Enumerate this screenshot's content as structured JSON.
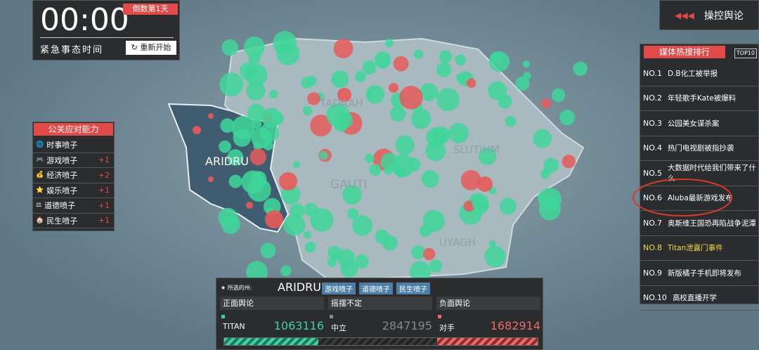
{
  "timer": {
    "time": "00:00",
    "day_tag": "倒数第1天",
    "label": "紧急事态时间",
    "restart": "重新开始"
  },
  "control_button": "操控舆论",
  "hot_search": {
    "title": "媒体热搜排行",
    "badge": "TOP10",
    "items": [
      {
        "rank": "NO.1",
        "text": "D.B化工被举报"
      },
      {
        "rank": "NO.2",
        "text": "年轻歌手Kate被爆料"
      },
      {
        "rank": "NO.3",
        "text": "公园美女谋杀案"
      },
      {
        "rank": "NO.4",
        "text": "热门电视剧被指抄袭"
      },
      {
        "rank": "NO.5",
        "text": "大数据时代给我们带来了什么"
      },
      {
        "rank": "NO.6",
        "text": "Aluba最新游戏发布"
      },
      {
        "rank": "NO.7",
        "text": "奥斯维王国恐再陷战争泥潭"
      },
      {
        "rank": "NO.8",
        "text": "Titan泄露门事件"
      },
      {
        "rank": "NO.9",
        "text": "新版橘子手机即将发布"
      },
      {
        "rank": "NO.10",
        "text": "高校直播开学"
      }
    ]
  },
  "pr_ability": {
    "title": "公关应对能力",
    "items": [
      {
        "name": "时事喷子"
      },
      {
        "name": "游戏喷子",
        "bonus": "+1"
      },
      {
        "name": "经济喷子",
        "bonus": "+2"
      },
      {
        "name": "娱乐喷子",
        "bonus": "+1"
      },
      {
        "name": "道德喷子",
        "bonus": "+1"
      },
      {
        "name": "民生喷子",
        "bonus": "+1"
      }
    ]
  },
  "map_labels": [
    "ARIDRU",
    "TADAAH",
    "SLUTIHM",
    "GAUTI",
    "UYAGH"
  ],
  "selected": {
    "label": "所选的州:",
    "state": "ARIDRU",
    "tags": [
      "游戏喷子",
      "道德喷子",
      "民生喷子"
    ],
    "columns": [
      "正面舆论",
      "摇摆不定",
      "负面舆论"
    ],
    "stats": [
      {
        "name": "TITAN",
        "value": "1063116"
      },
      {
        "name": "中立",
        "value": "2847195"
      },
      {
        "name": "对手",
        "value": "1682914"
      }
    ]
  }
}
